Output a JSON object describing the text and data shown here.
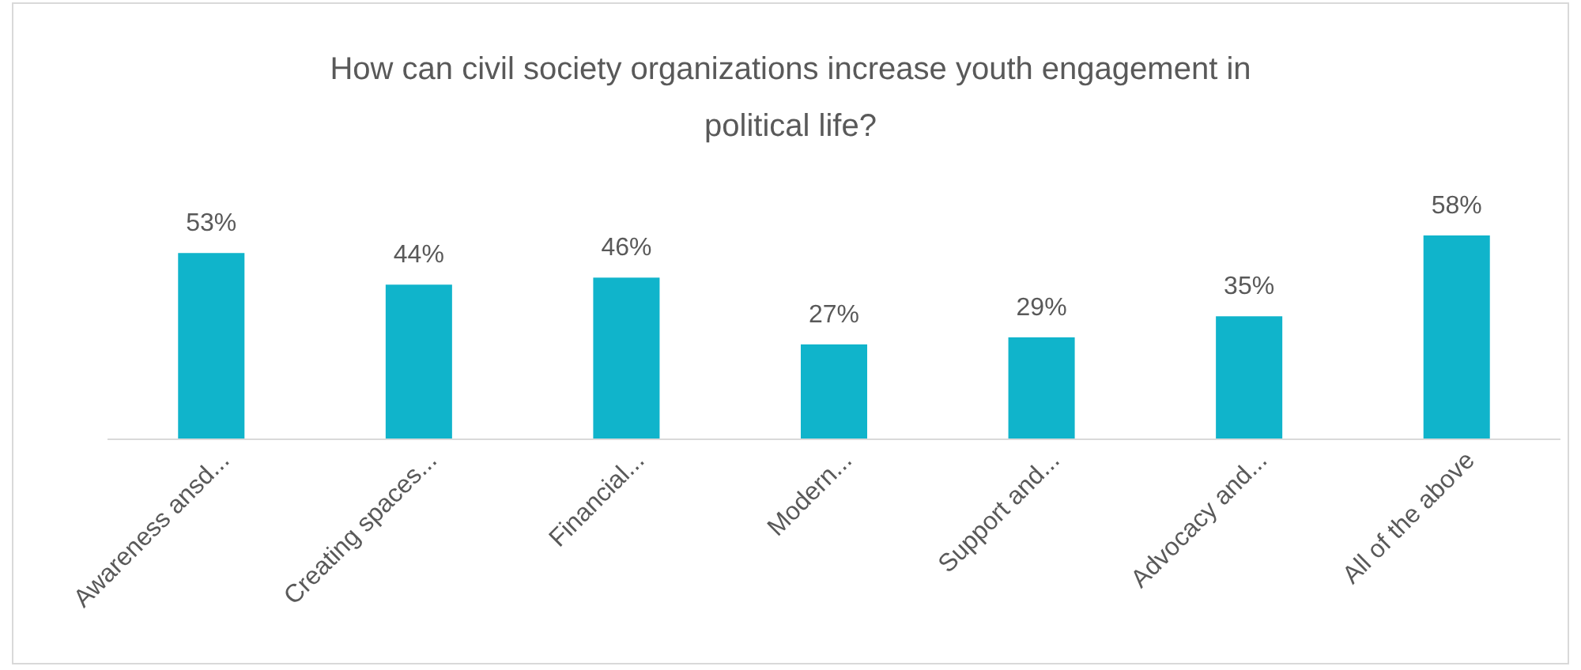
{
  "chart_data": {
    "type": "bar",
    "title": "How can civil society organizations increase youth engagement in political life?",
    "categories": [
      "Awareness ansd...",
      "Creating spaces...",
      "Financial...",
      "Modern...",
      "Support and...",
      "Advocacy and...",
      "All of the above"
    ],
    "values": [
      53,
      44,
      46,
      27,
      29,
      35,
      58
    ],
    "value_labels": [
      "53%",
      "44%",
      "46%",
      "27%",
      "29%",
      "35%",
      "58%"
    ],
    "color": "#10b4cb"
  }
}
